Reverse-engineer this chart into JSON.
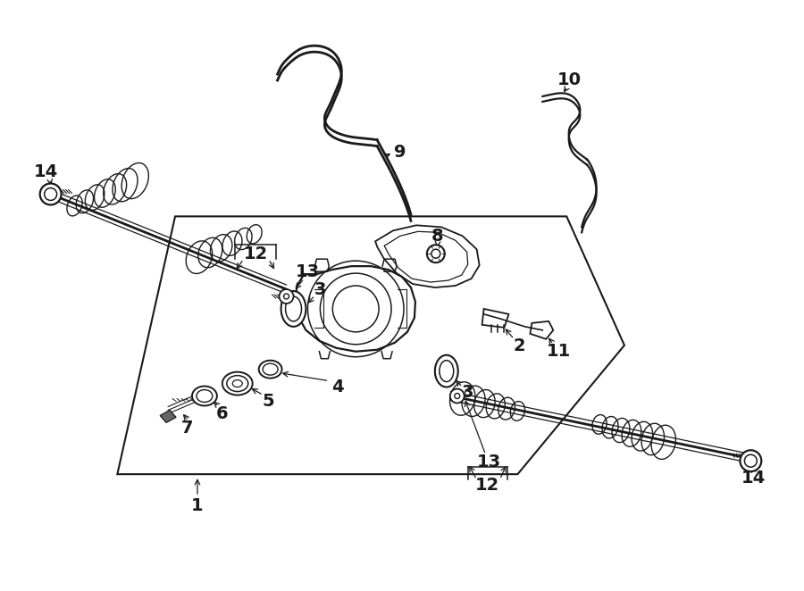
{
  "bg_color": "#ffffff",
  "line_color": "#1a1a1a",
  "figsize": [
    9.0,
    6.62
  ],
  "dpi": 100,
  "font_size": 14
}
